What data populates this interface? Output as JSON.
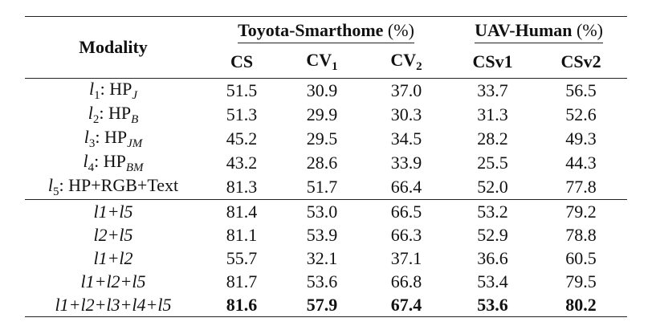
{
  "table": {
    "modality_header": "Modality",
    "groups": [
      {
        "name": "Toyota-Smarthome",
        "unit": "(%)"
      },
      {
        "name": "UAV-Human",
        "unit": "(%)"
      }
    ],
    "subheaders": {
      "cs": "CS",
      "cv1_base": "CV",
      "cv1_sub": "1",
      "cv2_base": "CV",
      "cv2_sub": "2",
      "csv1": "CSv1",
      "csv2": "CSv2"
    },
    "rows_group1": [
      {
        "mod_l": "l",
        "mod_sub": "1",
        "mod_sep": ": ",
        "mod_hp": "HP",
        "mod_hp_sub": "J",
        "values": [
          "51.5",
          "30.9",
          "37.0",
          "33.7",
          "56.5"
        ]
      },
      {
        "mod_l": "l",
        "mod_sub": "2",
        "mod_sep": ": ",
        "mod_hp": "HP",
        "mod_hp_sub": "B",
        "values": [
          "51.3",
          "29.9",
          "30.3",
          "31.3",
          "52.6"
        ]
      },
      {
        "mod_l": "l",
        "mod_sub": "3",
        "mod_sep": ": ",
        "mod_hp": "HP",
        "mod_hp_sub": "JM",
        "values": [
          "45.2",
          "29.5",
          "34.5",
          "28.2",
          "49.3"
        ]
      },
      {
        "mod_l": "l",
        "mod_sub": "4",
        "mod_sep": ": ",
        "mod_hp": "HP",
        "mod_hp_sub": "BM",
        "values": [
          "43.2",
          "28.6",
          "33.9",
          "25.5",
          "44.3"
        ]
      },
      {
        "mod_l": "l",
        "mod_sub": "5",
        "mod_sep": ": ",
        "mod_hp": "HP+RGB+Text",
        "mod_hp_sub": "",
        "values": [
          "81.3",
          "51.7",
          "66.4",
          "52.0",
          "77.8"
        ]
      }
    ],
    "rows_group2": [
      {
        "modality": "l1+l5",
        "values": [
          "81.4",
          "53.0",
          "66.5",
          "53.2",
          "79.2"
        ],
        "bold": false
      },
      {
        "modality": "l2+l5",
        "values": [
          "81.1",
          "53.9",
          "66.3",
          "52.9",
          "78.8"
        ],
        "bold": false
      },
      {
        "modality": "l1+l2",
        "values": [
          "55.7",
          "32.1",
          "37.1",
          "36.6",
          "60.5"
        ],
        "bold": false
      },
      {
        "modality": "l1+l2+l5",
        "values": [
          "81.7",
          "53.6",
          "66.8",
          "53.4",
          "79.5"
        ],
        "bold": false
      },
      {
        "modality": "l1+l2+l3+l4+l5",
        "values": [
          "81.6",
          "57.9",
          "67.4",
          "53.6",
          "80.2"
        ],
        "bold": true
      }
    ]
  }
}
